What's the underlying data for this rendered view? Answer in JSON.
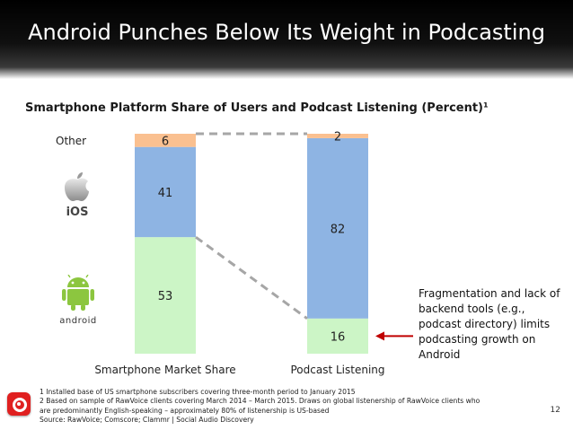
{
  "slide": {
    "title": "Android Punches Below Its Weight in Podcasting",
    "page_number": "12"
  },
  "chart_data": {
    "type": "bar",
    "stacked": true,
    "title": "Smartphone Platform Share of Users and Podcast Listening (Percent)¹",
    "categories": [
      "Smartphone Market Share",
      "Podcast Listening"
    ],
    "series": [
      {
        "name": "Android",
        "values": [
          53,
          16
        ],
        "color": "#ccf5c6"
      },
      {
        "name": "iOS",
        "values": [
          41,
          82
        ],
        "color": "#8eb4e3"
      },
      {
        "name": "Other",
        "values": [
          6,
          2
        ],
        "color": "#fac090"
      }
    ],
    "ylim": [
      0,
      100
    ],
    "grid": false,
    "legend": "left",
    "legend_other_label": "Other",
    "ios_logo_text": "iOS",
    "android_logo_text": "android",
    "annotation": "Fragmentation and lack of backend tools (e.g., podcast directory) limits podcasting growth on Android",
    "annotation_arrow_color": "#c00000",
    "connector_color": "#a6a6a6"
  },
  "footnotes": {
    "line1": "1 Installed base of US smartphone subscribers covering three-month period to January 2015",
    "line2": "2 Based on sample of RawVoice clients covering March 2014 – March 2015. Draws on global listenership of RawVoice clients who",
    "line3": "are predominantly English-speaking – approximately 80% of listenership is US-based",
    "line4": "Source: RawVoice; Comscore; Clammr | Social Audio Discovery"
  },
  "icons": {
    "apple": "apple-icon",
    "android": "android-robot-icon",
    "logo": "clammr-logo-icon"
  }
}
